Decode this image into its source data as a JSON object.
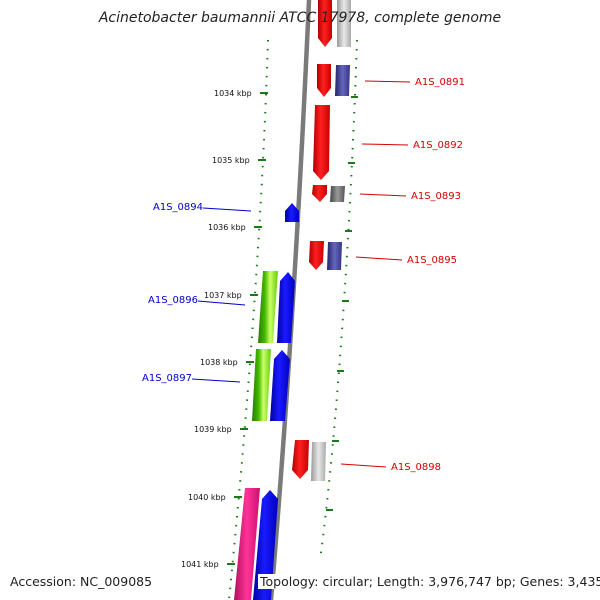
{
  "title": "Acinetobacter baumannii ATCC 17978, complete genome",
  "accession_text": "Accession: NC_009085",
  "topology_text": "Topology: circular; Length: 3,976,747 bp; Genes: 3,435",
  "colors": {
    "backbone": "#808080",
    "forward_label": "#d40000",
    "reverse_label": "#0000cc",
    "ticks": "#1a7a1a",
    "red_cds": "#ff0000",
    "blue_cds": "#0000ff",
    "green_cog": "#33aa00",
    "magenta_cog": "#ee1177",
    "purple_cog": "#333388",
    "gray_cog": "#666666",
    "light_gray_cog": "#bbbbbb"
  },
  "scale_ticks": [
    "1034 kbp",
    "1035 kbp",
    "1036 kbp",
    "1037 kbp",
    "1038 kbp",
    "1039 kbp",
    "1040 kbp",
    "1041 kbp"
  ],
  "gene_labels": [
    {
      "name": "A1S_0891",
      "strand": "forward"
    },
    {
      "name": "A1S_0892",
      "strand": "forward"
    },
    {
      "name": "A1S_0893",
      "strand": "forward"
    },
    {
      "name": "A1S_0894",
      "strand": "reverse"
    },
    {
      "name": "A1S_0895",
      "strand": "forward"
    },
    {
      "name": "A1S_0896",
      "strand": "reverse"
    },
    {
      "name": "A1S_0897",
      "strand": "reverse"
    },
    {
      "name": "A1S_0898",
      "strand": "forward"
    }
  ]
}
